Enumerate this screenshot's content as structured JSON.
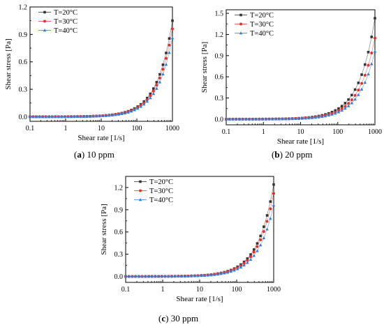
{
  "chart_data": [
    {
      "type": "scatter",
      "caption_letter": "a",
      "caption_text": "10 ppm",
      "xlabel": "Shear rate [1/s]",
      "ylabel": "Shear stress [Pa]",
      "xscale": "log",
      "xlim": [
        0.1,
        1000
      ],
      "ylim": [
        -0.05,
        1.2
      ],
      "xticks": [
        "0.1",
        "1",
        "10",
        "100",
        "1000"
      ],
      "yticks": [
        "0.0",
        "0.3",
        "0.6",
        "0.9",
        "1.2"
      ],
      "legend_position": "top-left",
      "series": [
        {
          "name": "T=20°C",
          "color": "#333333",
          "marker": "square",
          "viscosity": 0.00105
        },
        {
          "name": "T=30°C",
          "color": "#e8302a",
          "marker": "circle",
          "viscosity": 0.00096
        },
        {
          "name": "T=40°C",
          "color": "#2f7de0",
          "marker": "triangle",
          "viscosity": 0.00086
        }
      ]
    },
    {
      "type": "scatter",
      "caption_letter": "b",
      "caption_text": "20 ppm",
      "xlabel": "Shear rate [1/s]",
      "ylabel": "Shear stress [Pa]",
      "xscale": "log",
      "xlim": [
        0.1,
        1000
      ],
      "ylim": [
        -0.08,
        1.55
      ],
      "xticks": [
        "0.1",
        "1",
        "10",
        "100",
        "1000"
      ],
      "yticks": [
        "0.0",
        "0.3",
        "0.6",
        "0.9",
        "1.2",
        "1.5"
      ],
      "legend_position": "top-left",
      "series": [
        {
          "name": "T=20°C",
          "color": "#333333",
          "marker": "square",
          "viscosity": 0.00143
        },
        {
          "name": "T=30°C",
          "color": "#e8302a",
          "marker": "circle",
          "viscosity": 0.00115
        },
        {
          "name": "T=40°C",
          "color": "#2f7de0",
          "marker": "triangle",
          "viscosity": 0.00096
        }
      ]
    },
    {
      "type": "scatter",
      "caption_letter": "c",
      "caption_text": "30 ppm",
      "xlabel": "Shear rate [1/s]",
      "ylabel": "Shear stress [Pa]",
      "xscale": "log",
      "xlim": [
        0.1,
        1000
      ],
      "ylim": [
        -0.08,
        1.35
      ],
      "xticks": [
        "0.1",
        "1",
        "10",
        "100",
        "1000"
      ],
      "yticks": [
        "0.0",
        "0.3",
        "0.6",
        "0.9",
        "1.2"
      ],
      "legend_position": "top-left",
      "series": [
        {
          "name": "T=20°C",
          "color": "#333333",
          "marker": "square",
          "viscosity": 0.00124
        },
        {
          "name": "T=30°C",
          "color": "#e8302a",
          "marker": "circle",
          "viscosity": 0.00112
        },
        {
          "name": "T=40°C",
          "color": "#2f7de0",
          "marker": "triangle",
          "viscosity": 0.00096
        }
      ]
    }
  ]
}
